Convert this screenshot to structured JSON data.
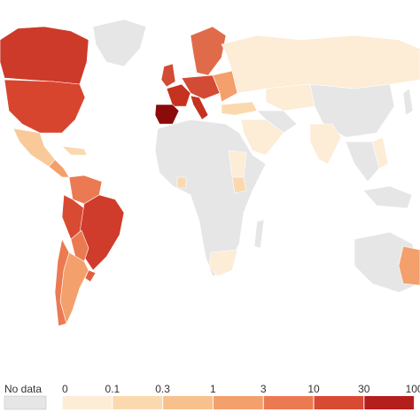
{
  "legend": {
    "no_data": "No data",
    "no_data_color": "#e6e6e6",
    "ticks": [
      0,
      0.1,
      0.3,
      1,
      3,
      10,
      30,
      100
    ],
    "colors": [
      "#fdecd6",
      "#fbd9ae",
      "#f8c08c",
      "#f3a06c",
      "#eb7a52",
      "#d94a33",
      "#b41f1d"
    ]
  }
}
